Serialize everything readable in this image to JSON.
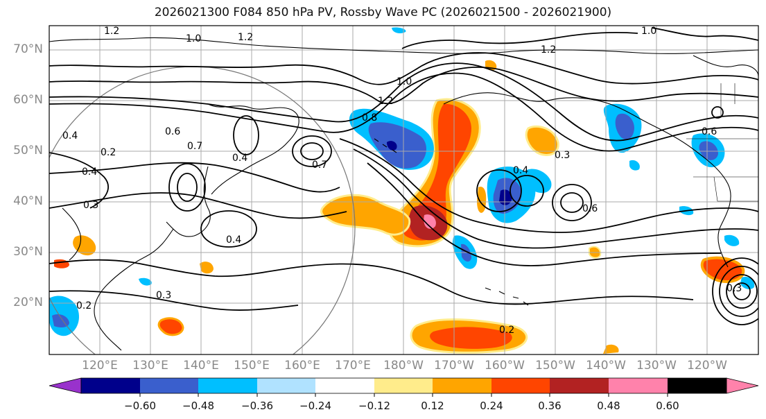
{
  "title": "2026021300 F084 850 hPa PV, Rossby Wave PC (2026021500 - 2026021900)",
  "map": {
    "lat_labels": [
      "70°N",
      "60°N",
      "50°N",
      "40°N",
      "30°N",
      "20°N"
    ],
    "lon_labels": [
      "120°E",
      "130°E",
      "140°E",
      "150°E",
      "160°E",
      "170°E",
      "180°W",
      "170°W",
      "160°W",
      "150°W",
      "140°W",
      "130°W",
      "120°W"
    ],
    "contour_labels": [
      "1.2",
      "1.0",
      "1.2",
      "1.0",
      "1.2",
      "1.2",
      "1.0",
      "0.8",
      "0.6",
      "0.7",
      "0.4",
      "0.2",
      "0.4",
      "0.3",
      "0.7",
      "0.4",
      "0.4",
      "0.3",
      "0.3",
      "0.6",
      "0.4",
      "0.6",
      "0.2",
      "0.3",
      "0.2"
    ]
  },
  "colorbar": {
    "colors": [
      "#9932cc",
      "#00008b",
      "#3a5fcd",
      "#00bfff",
      "#b0e2ff",
      "#ffffff",
      "#ffec8b",
      "#ffa500",
      "#ff4500",
      "#b22222",
      "#ff82ab"
    ],
    "tick_labels": [
      "−0.60",
      "−0.48",
      "−0.36",
      "−0.24",
      "−0.12",
      "0.12",
      "0.24",
      "0.36",
      "0.48",
      "0.60"
    ]
  }
}
